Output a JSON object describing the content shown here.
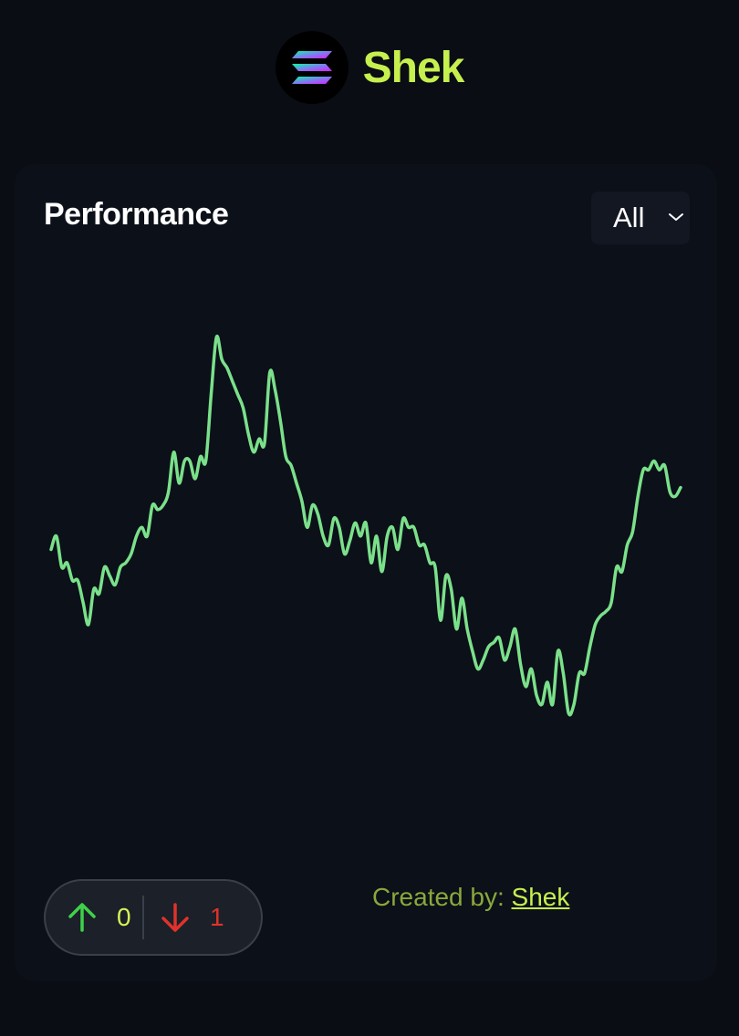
{
  "header": {
    "brand_name": "Shek",
    "brand_color": "#c6f04e",
    "logo_icon": "solana-logo-icon"
  },
  "performance": {
    "title": "Performance",
    "range_select": {
      "selected": "All"
    }
  },
  "chart_data": {
    "type": "line",
    "title": "",
    "xlabel": "",
    "ylabel": "",
    "grid": false,
    "legend": "none",
    "ylim": [
      0,
      100
    ],
    "series": [
      {
        "color": "#7be08a",
        "values": [
          50,
          53,
          46,
          47,
          43,
          43,
          38,
          33,
          41,
          40,
          46,
          44,
          42,
          46,
          47,
          49,
          53,
          55,
          53,
          60,
          59,
          60,
          63,
          72,
          65,
          70,
          70,
          66,
          71,
          70,
          85,
          98,
          93,
          91,
          88,
          85,
          82,
          76,
          72,
          75,
          74,
          90,
          86,
          79,
          71,
          69,
          65,
          61,
          55,
          60,
          58,
          53,
          51,
          57,
          55,
          49,
          52,
          56,
          53,
          56,
          47,
          53,
          45,
          53,
          55,
          50,
          57,
          55,
          55,
          51,
          51,
          47,
          46,
          34,
          44,
          41,
          32,
          39,
          32,
          27,
          23,
          25,
          28,
          29,
          30,
          25,
          28,
          32,
          24,
          19,
          23,
          17,
          15,
          20,
          15,
          27,
          22,
          13,
          15,
          22,
          22,
          28,
          33,
          35,
          36,
          38,
          46,
          45,
          51,
          54,
          62,
          68,
          68,
          70,
          68,
          69,
          63,
          62,
          64
        ]
      }
    ]
  },
  "votes": {
    "up_count": "0",
    "down_count": "1",
    "up_color": "#3fd14a",
    "down_color": "#e0322b"
  },
  "credit": {
    "label": "Created by: ",
    "author": "Shek"
  }
}
